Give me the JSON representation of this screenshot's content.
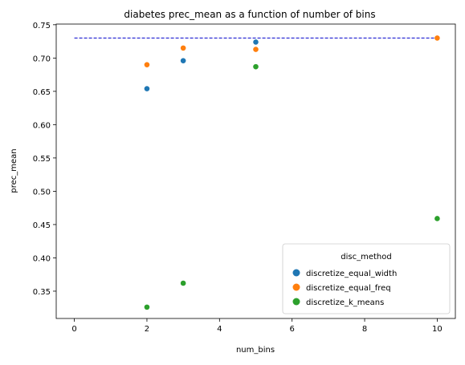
{
  "chart_data": {
    "type": "scatter",
    "title": "diabetes prec_mean as a function of number of bins",
    "xlabel": "num_bins",
    "ylabel": "prec_mean",
    "xlim": [
      -0.5,
      10.5
    ],
    "ylim": [
      0.309,
      0.751
    ],
    "x_ticks": [
      0,
      2,
      4,
      6,
      8,
      10
    ],
    "y_ticks": [
      0.35,
      0.4,
      0.45,
      0.5,
      0.55,
      0.6,
      0.65,
      0.7,
      0.75
    ],
    "x_tick_labels": [
      "0",
      "2",
      "4",
      "6",
      "8",
      "10"
    ],
    "y_tick_labels": [
      "0.35",
      "0.40",
      "0.45",
      "0.50",
      "0.55",
      "0.60",
      "0.65",
      "0.70",
      "0.75"
    ],
    "grid": false,
    "reference_line": {
      "value": 0.73,
      "x_range": [
        0,
        10
      ],
      "color": "#0000cc",
      "style": "dashed"
    },
    "legend": {
      "title": "disc_method",
      "placement": "lower-right",
      "entries": [
        "discretize_equal_width",
        "discretize_equal_freq",
        "discretize_k_means"
      ]
    },
    "series": [
      {
        "name": "discretize_equal_width",
        "color": "#1f77b4",
        "x": [
          2,
          3,
          5
        ],
        "y": [
          0.654,
          0.696,
          0.724
        ]
      },
      {
        "name": "discretize_equal_freq",
        "color": "#ff7f0e",
        "x": [
          2,
          3,
          5,
          10
        ],
        "y": [
          0.69,
          0.715,
          0.713,
          0.73
        ]
      },
      {
        "name": "discretize_k_means",
        "color": "#2ca02c",
        "x": [
          2,
          3,
          5,
          10
        ],
        "y": [
          0.326,
          0.362,
          0.687,
          0.459
        ]
      }
    ]
  }
}
